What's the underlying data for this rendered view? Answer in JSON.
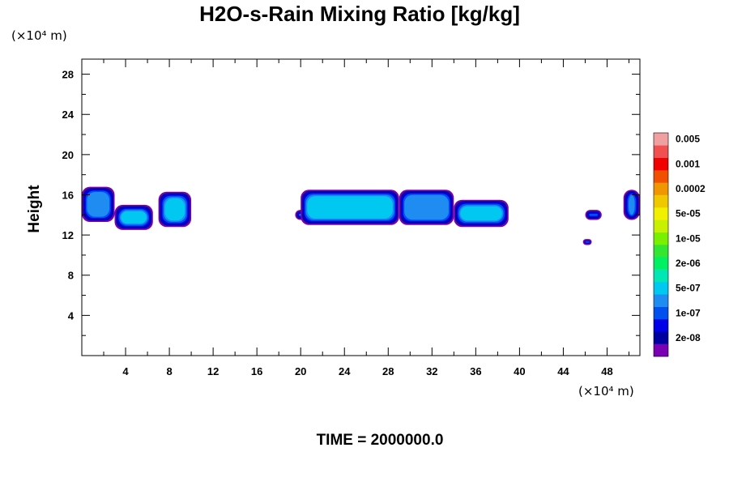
{
  "chart_data": {
    "type": "heatmap",
    "title": "H2O-s-Rain Mixing Ratio [kg/kg]",
    "ylabel": "Height",
    "x_unit": "(×10⁴ m)",
    "y_unit": "(×10⁴ m)",
    "xlim": [
      0,
      51
    ],
    "ylim": [
      0,
      29.5
    ],
    "x_ticks": [
      4,
      8,
      12,
      16,
      20,
      24,
      28,
      32,
      36,
      40,
      44,
      48
    ],
    "y_ticks": [
      4,
      8,
      12,
      16,
      20,
      24,
      28
    ],
    "x_tick_labels": [
      "4",
      "8",
      "12",
      "16",
      "20",
      "24",
      "28",
      "32",
      "36",
      "40",
      "44",
      "48"
    ],
    "y_tick_labels": [
      "4",
      "8",
      "12",
      "16",
      "20",
      "24",
      "28"
    ],
    "footer": "TIME = 2000000.0",
    "colorbar": {
      "colors": [
        "#7b00b4",
        "#0000a0",
        "#0000e6",
        "#0050f0",
        "#1e8cf0",
        "#00c8f0",
        "#00e6b4",
        "#00f064",
        "#32e632",
        "#78f000",
        "#c8f000",
        "#f0f000",
        "#f0c800",
        "#f09600",
        "#f05000",
        "#f00000",
        "#f05050",
        "#f0a0a0"
      ],
      "labels": [
        "2e-08",
        "1e-07",
        "5e-07",
        "2e-06",
        "1e-05",
        "5e-05",
        "0.0002",
        "0.001",
        "0.005"
      ]
    },
    "regions": [
      {
        "x": [
          0,
          3
        ],
        "y": [
          13.3,
          16.8
        ],
        "level": 4
      },
      {
        "x": [
          3,
          6.5
        ],
        "y": [
          12.5,
          15
        ],
        "level": 5
      },
      {
        "x": [
          7,
          10
        ],
        "y": [
          12.8,
          16.3
        ],
        "level": 5
      },
      {
        "x": [
          19.5,
          20.5
        ],
        "y": [
          13.5,
          14.5
        ],
        "level": 4
      },
      {
        "x": [
          20,
          29
        ],
        "y": [
          13,
          16.5
        ],
        "level": 5
      },
      {
        "x": [
          29,
          34
        ],
        "y": [
          13,
          16.5
        ],
        "level": 4
      },
      {
        "x": [
          34,
          39
        ],
        "y": [
          12.8,
          15.5
        ],
        "level": 5
      },
      {
        "x": [
          46,
          47.5
        ],
        "y": [
          13.5,
          14.5
        ],
        "level": 3
      },
      {
        "x": [
          45.8,
          46.6
        ],
        "y": [
          11,
          11.6
        ],
        "level": 3
      },
      {
        "x": [
          49.5,
          51
        ],
        "y": [
          13.5,
          16.5
        ],
        "level": 4
      }
    ]
  }
}
